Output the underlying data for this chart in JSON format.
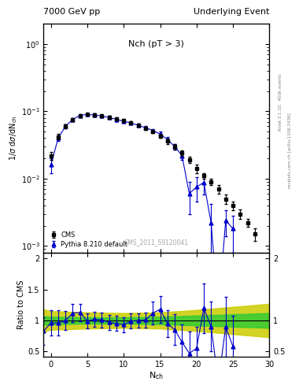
{
  "title_left": "7000 GeV pp",
  "title_right": "Underlying Event",
  "plot_label": "Nch (pT > 3)",
  "watermark": "CMS_2011_S9120041",
  "right_label_top": "Rivet 3.1.10,  400k events",
  "right_label_bot": "mcplots.cern.ch [arXiv:1306.3436]",
  "cms_x": [
    0,
    1,
    2,
    3,
    4,
    5,
    6,
    7,
    8,
    9,
    10,
    11,
    12,
    13,
    14,
    15,
    16,
    17,
    18,
    19,
    20,
    21,
    22,
    23,
    24,
    25,
    26,
    27,
    28
  ],
  "cms_y": [
    0.022,
    0.042,
    0.06,
    0.075,
    0.085,
    0.09,
    0.088,
    0.085,
    0.082,
    0.078,
    0.073,
    0.068,
    0.062,
    0.056,
    0.05,
    0.043,
    0.036,
    0.03,
    0.024,
    0.019,
    0.014,
    0.011,
    0.009,
    0.007,
    0.005,
    0.004,
    0.003,
    0.0022,
    0.0015
  ],
  "cms_yerr": [
    0.003,
    0.004,
    0.004,
    0.004,
    0.004,
    0.004,
    0.004,
    0.004,
    0.004,
    0.004,
    0.004,
    0.003,
    0.003,
    0.003,
    0.003,
    0.003,
    0.003,
    0.003,
    0.002,
    0.002,
    0.002,
    0.001,
    0.001,
    0.001,
    0.0008,
    0.0006,
    0.0005,
    0.0003,
    0.0003
  ],
  "pythia_x": [
    0,
    1,
    2,
    3,
    4,
    5,
    6,
    7,
    8,
    9,
    10,
    11,
    12,
    13,
    14,
    15,
    16,
    17,
    18,
    19,
    20,
    21,
    22,
    23,
    24,
    25
  ],
  "pythia_y": [
    0.016,
    0.04,
    0.06,
    0.076,
    0.087,
    0.09,
    0.088,
    0.085,
    0.081,
    0.076,
    0.071,
    0.067,
    0.062,
    0.057,
    0.052,
    0.046,
    0.038,
    0.03,
    0.022,
    0.006,
    0.0075,
    0.0088,
    0.0022,
    0.0001,
    0.0024,
    0.0018
  ],
  "pythia_yerr": [
    0.004,
    0.004,
    0.004,
    0.004,
    0.004,
    0.004,
    0.004,
    0.004,
    0.004,
    0.004,
    0.004,
    0.003,
    0.003,
    0.003,
    0.003,
    0.004,
    0.003,
    0.003,
    0.003,
    0.003,
    0.003,
    0.003,
    0.002,
    0.0001,
    0.001,
    0.001
  ],
  "ratio_x": [
    -1,
    0,
    1,
    2,
    3,
    4,
    5,
    6,
    7,
    8,
    9,
    10,
    11,
    12,
    13,
    14,
    15,
    16,
    17,
    18,
    19,
    20,
    21,
    22,
    23,
    24,
    25
  ],
  "ratio_y": [
    0.83,
    0.96,
    0.96,
    1.0,
    1.12,
    1.13,
    0.99,
    1.02,
    1.01,
    0.97,
    0.95,
    0.93,
    0.99,
    1.0,
    1.01,
    1.12,
    1.18,
    0.95,
    0.85,
    0.65,
    0.47,
    0.55,
    1.2,
    0.9,
    0.0,
    0.9,
    0.58
  ],
  "ratio_yerr": [
    0.22,
    0.2,
    0.2,
    0.15,
    0.15,
    0.14,
    0.12,
    0.12,
    0.12,
    0.12,
    0.12,
    0.12,
    0.12,
    0.12,
    0.12,
    0.18,
    0.22,
    0.22,
    0.25,
    0.28,
    0.35,
    0.35,
    0.4,
    0.4,
    0.4,
    0.48,
    0.5
  ],
  "band_x": [
    -1,
    0,
    5,
    10,
    15,
    20,
    25,
    30
  ],
  "green_upper": [
    1.07,
    1.06,
    1.05,
    1.05,
    1.06,
    1.08,
    1.1,
    1.12
  ],
  "green_lower": [
    0.93,
    0.94,
    0.95,
    0.95,
    0.94,
    0.92,
    0.9,
    0.88
  ],
  "yellow_upper": [
    1.18,
    1.15,
    1.13,
    1.12,
    1.13,
    1.17,
    1.22,
    1.27
  ],
  "yellow_lower": [
    0.82,
    0.85,
    0.87,
    0.88,
    0.87,
    0.83,
    0.78,
    0.73
  ],
  "ylim_main": [
    0.0008,
    2.0
  ],
  "ylim_ratio": [
    0.42,
    2.1
  ],
  "xlim": [
    -1,
    30
  ],
  "cms_color": "#000000",
  "pythia_color": "#0000cc",
  "band_green": "#33cc33",
  "band_yellow": "#cccc00",
  "bg_color": "white"
}
